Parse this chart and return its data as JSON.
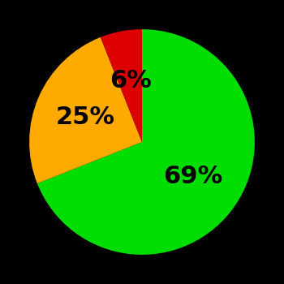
{
  "slices": [
    69,
    25,
    6
  ],
  "colors": [
    "#00dd00",
    "#ffaa00",
    "#dd0000"
  ],
  "labels": [
    "69%",
    "25%",
    "6%"
  ],
  "background_color": "#000000",
  "text_color": "#000000",
  "label_fontsize": 22,
  "label_fontweight": "bold",
  "figsize": [
    3.5,
    3.5
  ],
  "dpi": 100
}
